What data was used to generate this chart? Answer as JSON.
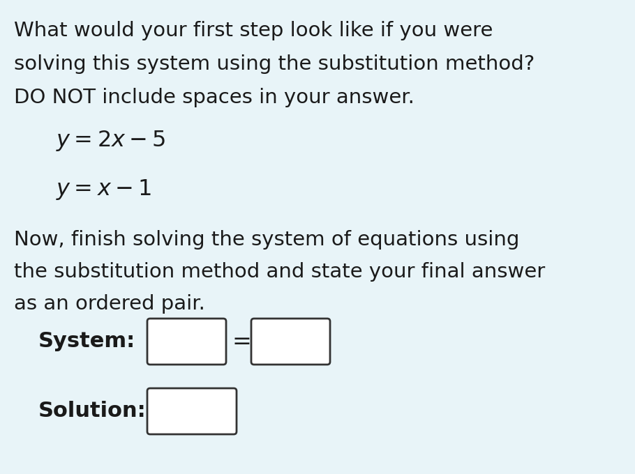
{
  "background_color": "#e8f4f8",
  "text_color": "#1a1a1a",
  "title_lines": [
    "What would your first step look like if you were",
    "solving this system using the substitution method?",
    "DO NOT include spaces in your answer."
  ],
  "equation1": "$y = 2x - 5$",
  "equation2": "$y = x - 1$",
  "body_lines": [
    "Now, finish solving the system of equations using",
    "the substitution method and state your final answer",
    "as an ordered pair."
  ],
  "system_label": "System:",
  "solution_label": "Solution:",
  "box_color": "#ffffff",
  "box_border_color": "#333333",
  "equals_sign": "=",
  "title_fontsize": 21,
  "eq_fontsize": 23,
  "body_fontsize": 21,
  "label_fontsize": 22
}
